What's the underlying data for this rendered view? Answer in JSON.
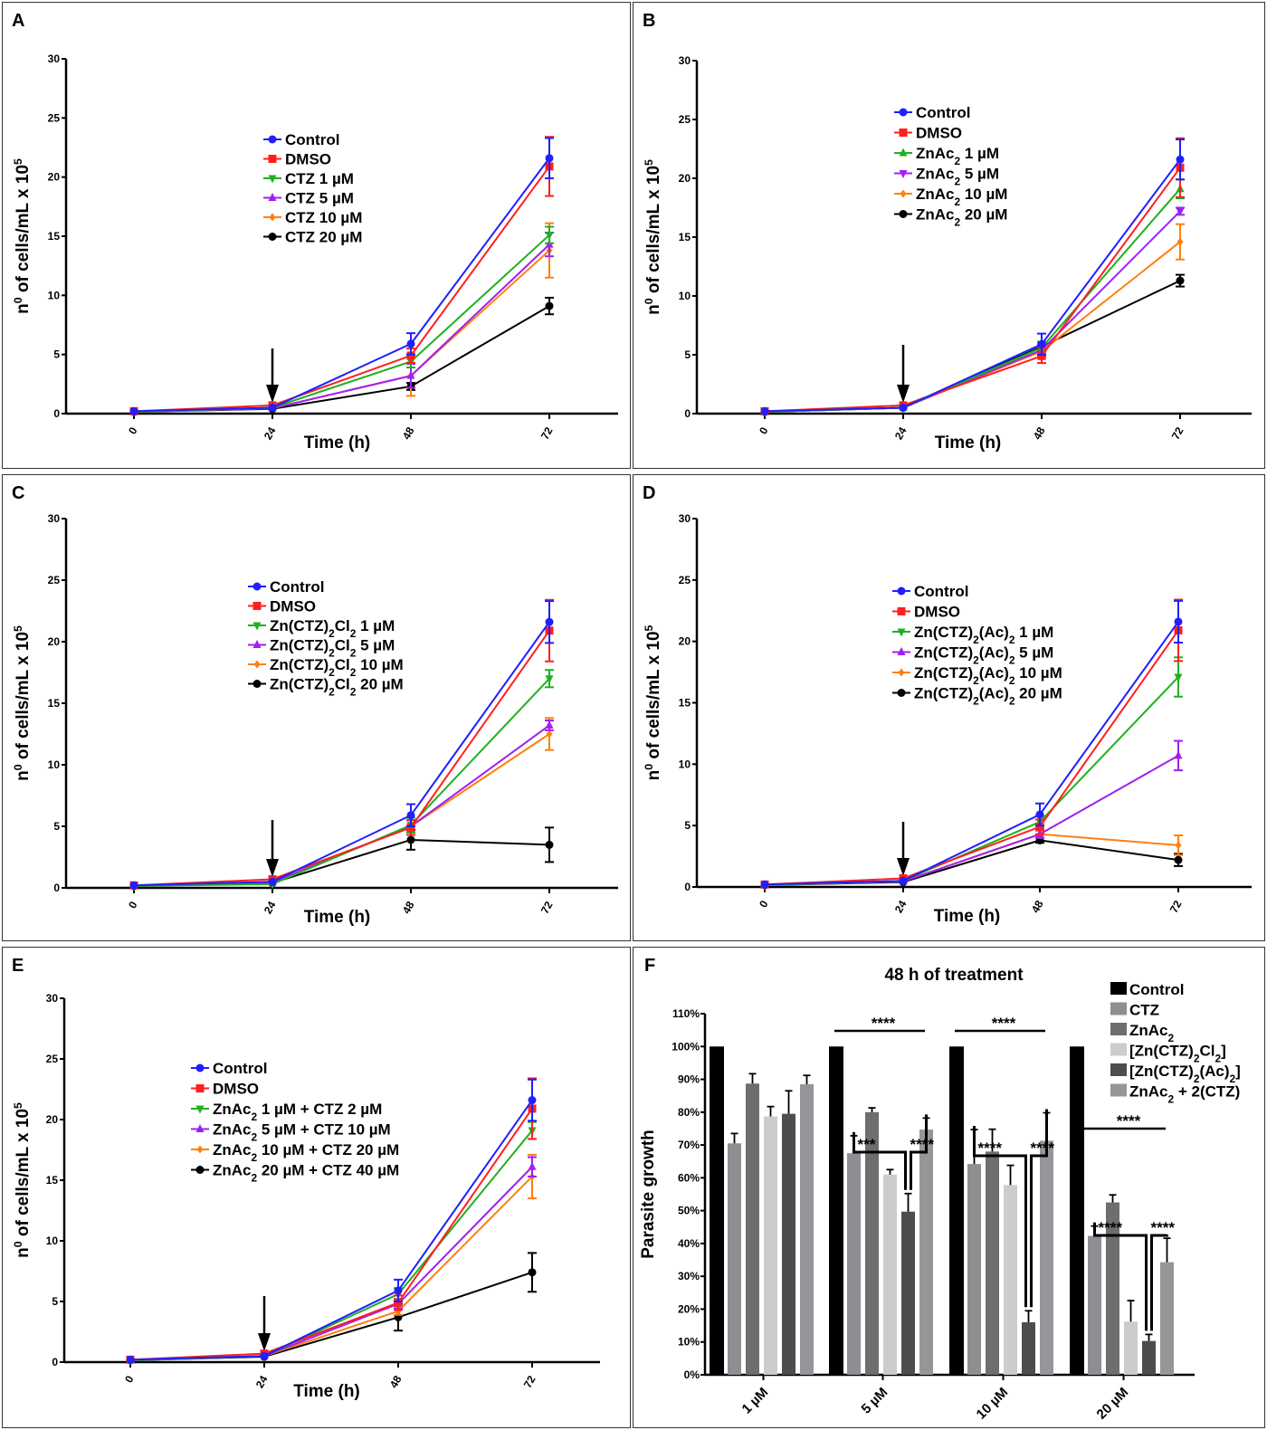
{
  "chart_data": [
    {
      "panel": "A",
      "type": "line",
      "xlabel": "Time (h)",
      "ylabel": "n⁰ of cells/mL x 10⁵",
      "x": [
        0,
        24,
        48,
        72
      ],
      "xticks": [
        "0",
        "24",
        "48",
        "72"
      ],
      "yticks": [
        "0",
        "5",
        "10",
        "15",
        "20",
        "25",
        "30"
      ],
      "ylim": [
        0,
        30
      ],
      "annotation": "arrow at 24 h",
      "legend_position": "center",
      "series": [
        {
          "name": "Control",
          "color": "#1f1fff",
          "marker": "circle",
          "values": [
            0.2,
            0.5,
            5.9,
            21.6
          ],
          "errors": [
            0.05,
            0.1,
            0.9,
            1.7
          ]
        },
        {
          "name": "DMSO",
          "color": "#ff1f1f",
          "marker": "square",
          "values": [
            0.2,
            0.7,
            4.9,
            20.9
          ],
          "errors": [
            0.05,
            0.1,
            0.6,
            2.5
          ]
        },
        {
          "name": "CTZ 1 µM",
          "color": "#1fb01f",
          "marker": "triangle-down",
          "values": [
            0.15,
            0.5,
            4.4,
            15.1
          ],
          "errors": [
            0.05,
            0.1,
            0.5,
            0.7
          ]
        },
        {
          "name": "CTZ 5 µM",
          "color": "#a020f0",
          "marker": "triangle-up",
          "values": [
            0.15,
            0.45,
            3.2,
            14.3
          ],
          "errors": [
            0.05,
            0.1,
            1.0,
            1.0
          ]
        },
        {
          "name": "CTZ 10 µM",
          "color": "#ff7f0e",
          "marker": "diamond",
          "values": [
            0.15,
            0.45,
            3.2,
            13.8
          ],
          "errors": [
            0.05,
            0.1,
            1.7,
            2.3
          ]
        },
        {
          "name": "CTZ 20 µM",
          "color": "#000000",
          "marker": "circle",
          "values": [
            0.15,
            0.4,
            2.3,
            9.1
          ],
          "errors": [
            0.05,
            0.1,
            0.3,
            0.7
          ]
        }
      ]
    },
    {
      "panel": "B",
      "type": "line",
      "xlabel": "Time (h)",
      "ylabel": "n⁰ of cells/mL x 10⁵",
      "x": [
        0,
        24,
        48,
        72
      ],
      "xticks": [
        "0",
        "24",
        "48",
        "72"
      ],
      "yticks": [
        "0",
        "5",
        "10",
        "15",
        "20",
        "25",
        "30"
      ],
      "ylim": [
        0,
        30
      ],
      "annotation": "arrow at 24 h",
      "legend_position": "top-center",
      "series": [
        {
          "name": "Control",
          "color": "#1f1fff",
          "marker": "circle",
          "values": [
            0.2,
            0.5,
            5.9,
            21.6
          ],
          "errors": [
            0.05,
            0.1,
            0.9,
            1.7
          ]
        },
        {
          "name": "DMSO",
          "color": "#ff1f1f",
          "marker": "square",
          "values": [
            0.2,
            0.7,
            4.9,
            20.9
          ],
          "errors": [
            0.05,
            0.1,
            0.6,
            2.5
          ]
        },
        {
          "name": "ZnAc₂ 1 µM",
          "color": "#1fb01f",
          "marker": "triangle-up",
          "values": [
            0.15,
            0.5,
            5.6,
            19.1
          ],
          "errors": [
            0.05,
            0.1,
            0.5,
            0.8
          ]
        },
        {
          "name": "ZnAc₂ 5 µM",
          "color": "#a020f0",
          "marker": "triangle-down",
          "values": [
            0.15,
            0.5,
            5.4,
            17.2
          ],
          "errors": [
            0.05,
            0.1,
            0.5,
            0.3
          ]
        },
        {
          "name": "ZnAc₂ 10 µM",
          "color": "#ff7f0e",
          "marker": "diamond",
          "values": [
            0.15,
            0.5,
            5.3,
            14.6
          ],
          "errors": [
            0.05,
            0.1,
            0.5,
            1.5
          ]
        },
        {
          "name": "ZnAc₂ 20 µM",
          "color": "#000000",
          "marker": "circle",
          "values": [
            0.15,
            0.5,
            5.7,
            11.3
          ],
          "errors": [
            0.05,
            0.1,
            0.4,
            0.5
          ]
        }
      ]
    },
    {
      "panel": "C",
      "type": "line",
      "xlabel": "Time (h)",
      "ylabel": "n⁰ of cells/mL x 10⁵",
      "x": [
        0,
        24,
        48,
        72
      ],
      "xticks": [
        "0",
        "24",
        "48",
        "72"
      ],
      "yticks": [
        "0",
        "5",
        "10",
        "15",
        "20",
        "25",
        "30"
      ],
      "ylim": [
        0,
        30
      ],
      "annotation": "arrow at 24 h",
      "legend_position": "center",
      "series": [
        {
          "name": "Control",
          "color": "#1f1fff",
          "marker": "circle",
          "values": [
            0.2,
            0.5,
            5.9,
            21.6
          ],
          "errors": [
            0.05,
            0.1,
            0.9,
            1.7
          ]
        },
        {
          "name": "DMSO",
          "color": "#ff1f1f",
          "marker": "square",
          "values": [
            0.2,
            0.7,
            4.9,
            20.9
          ],
          "errors": [
            0.05,
            0.1,
            0.6,
            2.5
          ]
        },
        {
          "name": "Zn(CTZ)₂Cl₂ 1 µM",
          "color": "#1fb01f",
          "marker": "triangle-down",
          "values": [
            0.15,
            0.3,
            5.1,
            17.0
          ],
          "errors": [
            0.05,
            0.1,
            0.6,
            0.7
          ]
        },
        {
          "name": "Zn(CTZ)₂Cl₂ 5 µM",
          "color": "#a020f0",
          "marker": "triangle-up",
          "values": [
            0.15,
            0.45,
            5.0,
            13.2
          ],
          "errors": [
            0.05,
            0.1,
            0.5,
            0.4
          ]
        },
        {
          "name": "Zn(CTZ)₂Cl₂ 10 µM",
          "color": "#ff7f0e",
          "marker": "diamond",
          "values": [
            0.15,
            0.45,
            5.0,
            12.5
          ],
          "errors": [
            0.05,
            0.1,
            0.5,
            1.3
          ]
        },
        {
          "name": "Zn(CTZ)₂Cl₂ 20 µM",
          "color": "#000000",
          "marker": "circle",
          "values": [
            0.15,
            0.4,
            3.9,
            3.5
          ],
          "errors": [
            0.05,
            0.1,
            0.8,
            1.4
          ]
        }
      ]
    },
    {
      "panel": "D",
      "type": "line",
      "xlabel": "Time (h)",
      "ylabel": "n⁰ of cells/mL x 10⁵",
      "x": [
        0,
        24,
        48,
        72
      ],
      "xticks": [
        "0",
        "24",
        "48",
        "72"
      ],
      "yticks": [
        "0",
        "5",
        "10",
        "15",
        "20",
        "25",
        "30"
      ],
      "ylim": [
        0,
        30
      ],
      "annotation": "arrow at 24 h",
      "legend_position": "center",
      "series": [
        {
          "name": "Control",
          "color": "#1f1fff",
          "marker": "circle",
          "values": [
            0.2,
            0.5,
            5.9,
            21.6
          ],
          "errors": [
            0.05,
            0.1,
            0.9,
            1.7
          ]
        },
        {
          "name": "DMSO",
          "color": "#ff1f1f",
          "marker": "square",
          "values": [
            0.2,
            0.7,
            4.9,
            20.9
          ],
          "errors": [
            0.05,
            0.1,
            0.6,
            2.5
          ]
        },
        {
          "name": "Zn(CTZ)₂(Ac)₂ 1 µM",
          "color": "#1fb01f",
          "marker": "triangle-down",
          "values": [
            0.15,
            0.5,
            5.3,
            17.1
          ],
          "errors": [
            0.05,
            0.1,
            0.5,
            1.6
          ]
        },
        {
          "name": "Zn(CTZ)₂(Ac)₂ 5 µM",
          "color": "#a020f0",
          "marker": "triangle-up",
          "values": [
            0.15,
            0.45,
            4.3,
            10.7
          ],
          "errors": [
            0.05,
            0.1,
            0.3,
            1.2
          ]
        },
        {
          "name": "Zn(CTZ)₂(Ac)₂ 10 µM",
          "color": "#ff7f0e",
          "marker": "diamond",
          "values": [
            0.15,
            0.45,
            4.3,
            3.4
          ],
          "errors": [
            0.05,
            0.1,
            0.3,
            0.8
          ]
        },
        {
          "name": "Zn(CTZ)₂(Ac)₂ 20 µM",
          "color": "#000000",
          "marker": "circle",
          "values": [
            0.15,
            0.4,
            3.8,
            2.2
          ],
          "errors": [
            0.05,
            0.1,
            0.2,
            0.5
          ]
        }
      ]
    },
    {
      "panel": "E",
      "type": "line",
      "xlabel": "Time (h)",
      "ylabel": "n⁰ of cells/mL x 10⁵",
      "x": [
        0,
        24,
        48,
        72
      ],
      "xticks": [
        "0",
        "24",
        "48",
        "72"
      ],
      "yticks": [
        "0",
        "5",
        "10",
        "15",
        "20",
        "25",
        "30"
      ],
      "ylim": [
        0,
        30
      ],
      "annotation": "arrow at 24 h",
      "legend_position": "center",
      "series": [
        {
          "name": "Control",
          "color": "#1f1fff",
          "marker": "circle",
          "values": [
            0.2,
            0.5,
            5.9,
            21.6
          ],
          "errors": [
            0.05,
            0.1,
            0.9,
            1.7
          ]
        },
        {
          "name": "DMSO",
          "color": "#ff1f1f",
          "marker": "square",
          "values": [
            0.2,
            0.7,
            4.9,
            20.9
          ],
          "errors": [
            0.05,
            0.1,
            0.6,
            2.5
          ]
        },
        {
          "name": "ZnAc₂ 1 µM + CTZ 2 µM",
          "color": "#1fb01f",
          "marker": "triangle-down",
          "values": [
            0.15,
            0.5,
            5.6,
            19.1
          ],
          "errors": [
            0.05,
            0.1,
            0.5,
            0.7
          ]
        },
        {
          "name": "ZnAc₂ 5 µM + CTZ 10 µM",
          "color": "#a020f0",
          "marker": "triangle-up",
          "values": [
            0.15,
            0.5,
            4.8,
            16.1
          ],
          "errors": [
            0.05,
            0.1,
            0.4,
            0.8
          ]
        },
        {
          "name": "ZnAc₂ 10 µM + CTZ 20 µM",
          "color": "#ff7f0e",
          "marker": "diamond",
          "values": [
            0.15,
            0.5,
            4.2,
            15.3
          ],
          "errors": [
            0.05,
            0.1,
            0.3,
            1.8
          ]
        },
        {
          "name": "ZnAc₂ 20 µM + CTZ 40 µM",
          "color": "#000000",
          "marker": "circle",
          "values": [
            0.15,
            0.45,
            3.7,
            7.4
          ],
          "errors": [
            0.05,
            0.1,
            1.1,
            1.6
          ]
        }
      ]
    },
    {
      "panel": "F",
      "type": "bar",
      "title": "48 h of treatment",
      "xlabel": "",
      "ylabel": "Parasite growth",
      "categories": [
        "1 µM",
        "5 µM",
        "10 µM",
        "20 µM"
      ],
      "yticks": [
        "0%",
        "10%",
        "20%",
        "30%",
        "40%",
        "50%",
        "60%",
        "70%",
        "80%",
        "90%",
        "100%",
        "110%"
      ],
      "ylim": [
        0,
        110
      ],
      "legend_position": "top-right",
      "series": [
        {
          "name": "Control",
          "color": "#000000",
          "values": [
            100,
            100,
            100,
            100
          ],
          "errors": [
            0,
            0,
            0,
            0
          ]
        },
        {
          "name": "CTZ",
          "color": "#8e8e93",
          "values": [
            70.5,
            67.5,
            64.2,
            42.3
          ],
          "errors": [
            3.0,
            5.3,
            10.5,
            3.0
          ]
        },
        {
          "name": "ZnAc₂",
          "color": "#6e6e6e",
          "values": [
            88.7,
            80.0,
            68.0,
            52.5
          ],
          "errors": [
            3.0,
            1.3,
            6.8,
            2.3
          ]
        },
        {
          "name": "[Zn(CTZ)₂Cl₂]",
          "color": "#cccccc",
          "values": [
            78.7,
            61.0,
            57.8,
            16.2
          ],
          "errors": [
            3.0,
            1.5,
            6.0,
            6.4
          ]
        },
        {
          "name": "[Zn(CTZ)₂(Ac)₂]",
          "color": "#4d4d4d",
          "values": [
            79.5,
            49.7,
            16.0,
            10.3
          ],
          "errors": [
            7.0,
            5.5,
            3.5,
            2.0
          ]
        },
        {
          "name": "ZnAc₂ + 2(CTZ)",
          "color": "#95959a",
          "values": [
            88.5,
            74.7,
            71.3,
            34.3
          ],
          "errors": [
            2.7,
            3.5,
            8.5,
            7.3
          ]
        }
      ],
      "significance": [
        {
          "group": "5 µM",
          "label": "****",
          "type": "overall"
        },
        {
          "group": "5 µM",
          "label": "***",
          "type": "CTZ vs [Zn(CTZ)₂(Ac)₂]"
        },
        {
          "group": "5 µM",
          "label": "****",
          "type": "[Zn(CTZ)₂(Ac)₂] vs ZnAc₂ + 2(CTZ)"
        },
        {
          "group": "10 µM",
          "label": "****",
          "type": "overall"
        },
        {
          "group": "10 µM",
          "label": "****",
          "type": "CTZ vs [Zn(CTZ)₂(Ac)₂]"
        },
        {
          "group": "10 µM",
          "label": "****",
          "type": "[Zn(CTZ)₂(Ac)₂] vs ZnAc₂ + 2(CTZ)"
        },
        {
          "group": "20 µM",
          "label": "****",
          "type": "overall"
        },
        {
          "group": "20 µM",
          "label": "****",
          "type": "CTZ vs [Zn(CTZ)₂(Ac)₂]"
        },
        {
          "group": "20 µM",
          "label": "****",
          "type": "[Zn(CTZ)₂(Ac)₂] vs ZnAc₂ + 2(CTZ)"
        }
      ]
    }
  ]
}
